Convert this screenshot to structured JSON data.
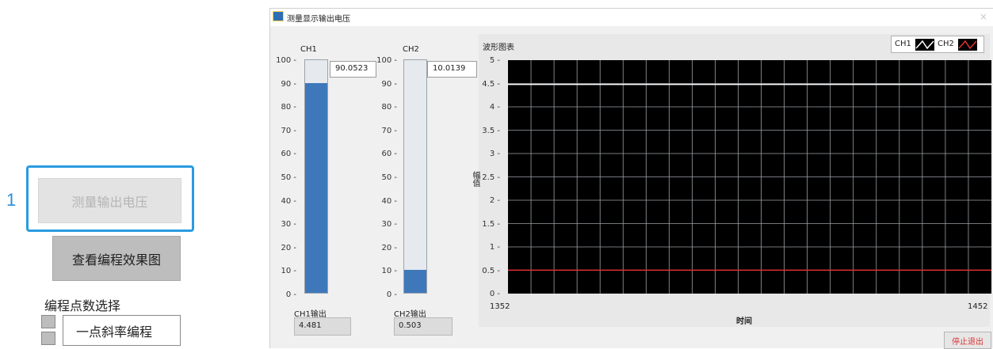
{
  "step_number": "1",
  "left_panel": {
    "measure_button": "测量输出电压",
    "view_button": "查看编程效果图",
    "programming_label": "编程点数选择",
    "programming_value": "一点斜率编程"
  },
  "window": {
    "title": "测量显示输出电压",
    "close_glyph": "×",
    "ch1": {
      "label": "CH1",
      "digital": "90.0523",
      "output_label": "CH1输出",
      "output_value": "4.481",
      "level": 90.0523
    },
    "ch2": {
      "label": "CH2",
      "digital": "10.0139",
      "output_label": "CH2输出",
      "output_value": "0.503",
      "level": 10.0139
    },
    "tank_ticks": [
      "100",
      "90",
      "80",
      "70",
      "60",
      "50",
      "40",
      "30",
      "20",
      "10",
      "0"
    ],
    "tank_range": [
      0,
      100
    ],
    "chart": {
      "title": "波形图表",
      "ylabel": "幅值",
      "xlabel": "时间",
      "yticks": [
        "5",
        "4.5",
        "4",
        "3.5",
        "3",
        "2.5",
        "2",
        "1.5",
        "1",
        "0.5",
        "0"
      ],
      "x_start": "1352",
      "x_end": "1452",
      "legend": [
        "CH1",
        "CH2"
      ],
      "ch1_color": "#ffffff",
      "ch2_color": "#e03030",
      "grid_color": "#9aa0a6"
    },
    "stop_button": "停止退出"
  },
  "chart_data": {
    "type": "line",
    "title": "波形图表",
    "xlabel": "时间",
    "ylabel": "幅值",
    "xlim": [
      1352,
      1452
    ],
    "ylim": [
      0,
      5
    ],
    "series": [
      {
        "name": "CH1",
        "x": [
          1352,
          1452
        ],
        "values": [
          4.481,
          4.481
        ]
      },
      {
        "name": "CH2",
        "x": [
          1352,
          1452
        ],
        "values": [
          0.503,
          0.503
        ]
      }
    ],
    "grid": true,
    "legend_position": "top-right"
  }
}
